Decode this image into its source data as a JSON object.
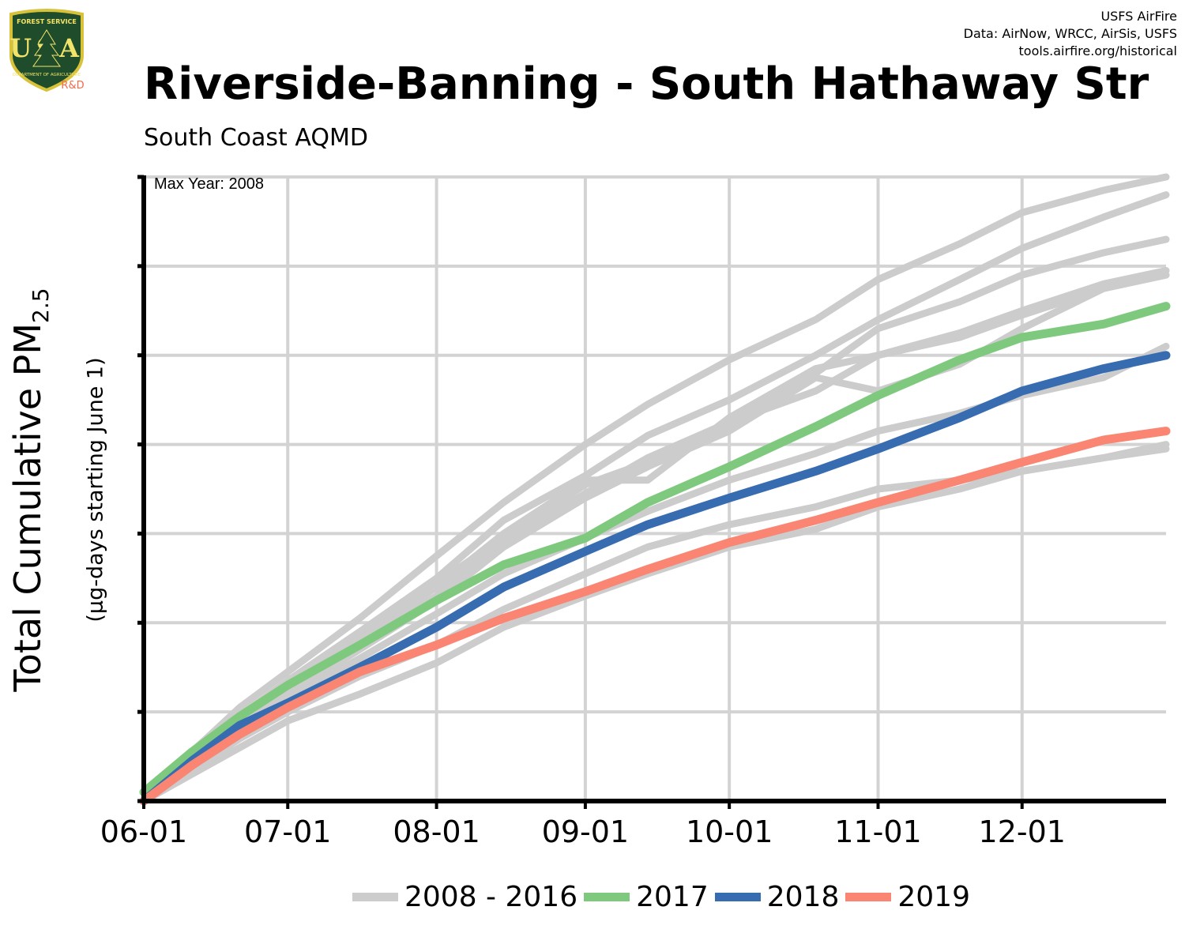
{
  "logo": {
    "top_text": "FOREST SERVICE",
    "letters": "USA",
    "bottom_text": "DEPARTMENT OF AGRICULTURE",
    "tag": "R&D"
  },
  "credits": {
    "line1": "USFS AirFire",
    "line2": "Data: AirNow, WRCC, AirSis, USFS",
    "line3": "tools.airfire.org/historical"
  },
  "colors": {
    "historical": "#cccccc",
    "y2017": "#7fc97f",
    "y2018": "#386cb0",
    "y2019": "#f98572",
    "grid": "#d3d3d3",
    "axis": "#000000"
  },
  "chart_data": {
    "type": "line",
    "title": "Riverside-Banning - South Hathaway Str",
    "subtitle": "South Coast AQMD",
    "annotation": "Max Year: 2008",
    "ylabel": "Total Cumulative PM",
    "ylabel_sub": "2.5",
    "ylabel2": "(µg-days starting June 1)",
    "x_unit": "days since June 1",
    "x_tick_labels": [
      "06-01",
      "07-01",
      "08-01",
      "09-01",
      "10-01",
      "11-01",
      "12-01"
    ],
    "x_tick_values": [
      0,
      30,
      61,
      92,
      122,
      153,
      183
    ],
    "xlim": [
      0,
      213
    ],
    "ylim": [
      0,
      7
    ],
    "y_ticks": [
      0,
      1,
      2,
      3,
      4,
      5,
      6,
      7
    ],
    "y_tick_labels_visible": false,
    "grid": true,
    "legend_position": "bottom",
    "series": [
      {
        "name": "2008 - 2016",
        "group": "historical",
        "x": [
          0,
          10,
          20,
          30,
          45,
          61,
          75,
          92,
          105,
          122,
          140,
          153,
          170,
          183,
          200,
          213
        ],
        "y": [
          0,
          0.55,
          1.05,
          1.45,
          2.05,
          2.75,
          3.35,
          4.0,
          4.45,
          4.95,
          5.4,
          5.85,
          6.25,
          6.6,
          6.85,
          7.0
        ]
      },
      {
        "name": "2008 - 2016",
        "group": "historical",
        "x": [
          0,
          10,
          20,
          30,
          45,
          61,
          75,
          92,
          105,
          122,
          140,
          153,
          170,
          183,
          200,
          213
        ],
        "y": [
          0,
          0.5,
          0.95,
          1.35,
          1.9,
          2.5,
          3.15,
          3.65,
          4.1,
          4.5,
          5.0,
          5.4,
          5.85,
          6.2,
          6.55,
          6.8
        ]
      },
      {
        "name": "2008 - 2016",
        "group": "historical",
        "x": [
          0,
          10,
          20,
          30,
          45,
          61,
          75,
          92,
          105,
          122,
          140,
          153,
          170,
          183,
          200,
          213
        ],
        "y": [
          0,
          0.45,
          0.9,
          1.3,
          1.85,
          2.45,
          2.95,
          3.55,
          3.8,
          4.2,
          4.8,
          5.3,
          5.6,
          5.9,
          6.15,
          6.3
        ]
      },
      {
        "name": "2008 - 2016",
        "group": "historical",
        "x": [
          0,
          10,
          20,
          30,
          45,
          61,
          75,
          92,
          105,
          122,
          140,
          153,
          170,
          183,
          200,
          213
        ],
        "y": [
          0,
          0.45,
          0.85,
          1.25,
          1.8,
          2.4,
          3.0,
          3.6,
          3.6,
          4.3,
          4.85,
          5.0,
          5.25,
          5.5,
          5.8,
          5.95
        ]
      },
      {
        "name": "2008 - 2016",
        "group": "historical",
        "x": [
          0,
          10,
          20,
          30,
          45,
          61,
          75,
          92,
          105,
          122,
          140,
          153,
          170,
          183,
          200,
          213
        ],
        "y": [
          0,
          0.45,
          0.85,
          1.2,
          1.75,
          2.3,
          2.9,
          3.45,
          3.85,
          4.25,
          4.6,
          5.0,
          5.2,
          5.45,
          5.75,
          5.9
        ]
      },
      {
        "name": "2008 - 2016",
        "group": "historical",
        "x": [
          0,
          10,
          20,
          30,
          45,
          61,
          75,
          92,
          105,
          122,
          140,
          153,
          170,
          183,
          200,
          213
        ],
        "y": [
          0,
          0.45,
          0.85,
          1.2,
          1.7,
          2.25,
          2.85,
          3.4,
          3.75,
          4.15,
          4.75,
          4.6,
          4.9,
          5.3,
          5.75,
          5.9
        ]
      },
      {
        "name": "2008 - 2016",
        "group": "historical",
        "x": [
          0,
          10,
          20,
          30,
          45,
          61,
          75,
          92,
          105,
          122,
          140,
          153,
          170,
          183,
          200,
          213
        ],
        "y": [
          0,
          0.4,
          0.8,
          1.15,
          1.6,
          2.1,
          2.55,
          2.95,
          3.25,
          3.6,
          3.9,
          4.15,
          4.35,
          4.55,
          4.75,
          5.1
        ]
      },
      {
        "name": "2008 - 2016",
        "group": "historical",
        "x": [
          0,
          10,
          20,
          30,
          45,
          61,
          75,
          92,
          105,
          122,
          140,
          153,
          170,
          183,
          200,
          213
        ],
        "y": [
          0,
          0.35,
          0.7,
          1.0,
          1.4,
          1.75,
          2.15,
          2.55,
          2.85,
          3.1,
          3.3,
          3.5,
          3.6,
          3.7,
          3.85,
          4.0
        ]
      },
      {
        "name": "2008 - 2016",
        "group": "historical",
        "x": [
          0,
          10,
          20,
          30,
          45,
          61,
          75,
          92,
          105,
          122,
          140,
          153,
          170,
          183,
          200,
          213
        ],
        "y": [
          0,
          0.3,
          0.6,
          0.9,
          1.2,
          1.55,
          1.95,
          2.3,
          2.55,
          2.85,
          3.05,
          3.3,
          3.5,
          3.7,
          3.85,
          3.95
        ]
      },
      {
        "name": "2017",
        "group": "y2017",
        "x": [
          0,
          10,
          20,
          30,
          45,
          61,
          75,
          92,
          105,
          122,
          140,
          153,
          170,
          183,
          200,
          213
        ],
        "y": [
          0.1,
          0.55,
          0.95,
          1.3,
          1.75,
          2.25,
          2.65,
          2.95,
          3.35,
          3.75,
          4.2,
          4.55,
          4.95,
          5.2,
          5.35,
          5.55
        ]
      },
      {
        "name": "2018",
        "group": "y2018",
        "x": [
          0,
          10,
          20,
          30,
          45,
          61,
          75,
          92,
          105,
          122,
          140,
          153,
          170,
          183,
          200,
          213
        ],
        "y": [
          0,
          0.45,
          0.85,
          1.1,
          1.5,
          1.95,
          2.4,
          2.8,
          3.1,
          3.4,
          3.7,
          3.95,
          4.3,
          4.6,
          4.85,
          5.0
        ]
      },
      {
        "name": "2019",
        "group": "y2019",
        "x": [
          0,
          10,
          20,
          30,
          45,
          61,
          75,
          92,
          105,
          122,
          140,
          153,
          170,
          183,
          200,
          213
        ],
        "y": [
          0,
          0.4,
          0.75,
          1.05,
          1.45,
          1.75,
          2.05,
          2.35,
          2.6,
          2.9,
          3.15,
          3.35,
          3.6,
          3.8,
          4.05,
          4.15
        ]
      }
    ]
  },
  "legend": {
    "items": [
      {
        "label": "2008 - 2016",
        "color": "#cccccc"
      },
      {
        "label": "2017",
        "color": "#7fc97f"
      },
      {
        "label": "2018",
        "color": "#386cb0"
      },
      {
        "label": "2019",
        "color": "#f98572"
      }
    ]
  }
}
